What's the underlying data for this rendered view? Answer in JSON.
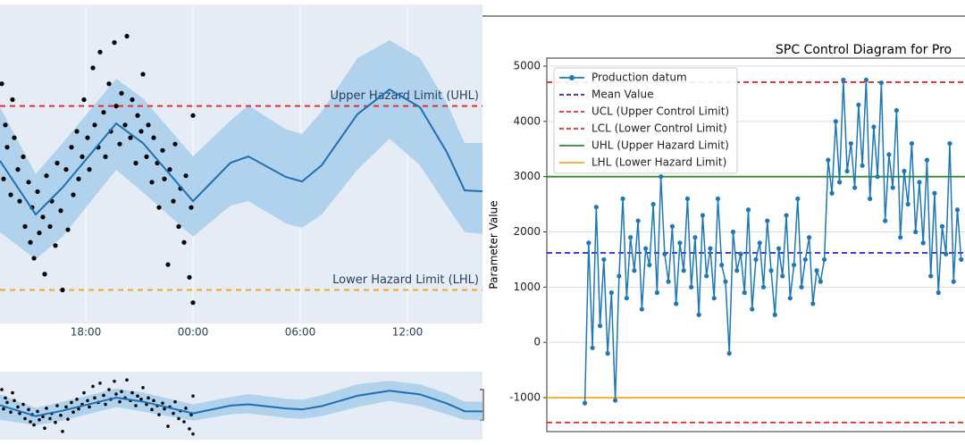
{
  "chart_data": [
    {
      "type": "forecast",
      "xlim": [
        13.2,
        40.2
      ],
      "ylim": [
        0,
        100
      ],
      "xticks": [
        {
          "value": 18,
          "label": "18:00"
        },
        {
          "value": 24,
          "label": "00:00"
        },
        {
          "value": 30,
          "label": "06:00"
        },
        {
          "value": 36,
          "label": "12:00"
        }
      ],
      "scatter": {
        "color": "#000000",
        "x": [
          13.3,
          13.4,
          13.5,
          13.6,
          13.8,
          13.9,
          14.0,
          14.2,
          14.3,
          14.5,
          14.6,
          14.8,
          14.9,
          15.0,
          15.1,
          15.3,
          15.4,
          15.6,
          15.7,
          15.8,
          16.0,
          16.1,
          16.3,
          16.4,
          16.6,
          16.7,
          16.9,
          17.0,
          17.2,
          17.3,
          17.5,
          17.6,
          17.8,
          17.9,
          18.1,
          18.2,
          18.4,
          18.5,
          18.7,
          18.8,
          19.0,
          19.1,
          19.3,
          19.4,
          19.6,
          19.7,
          19.9,
          20.0,
          20.2,
          20.3,
          20.5,
          20.6,
          20.8,
          20.9,
          21.1,
          21.2,
          21.4,
          21.5,
          21.7,
          21.8,
          22.0,
          22.1,
          22.3,
          22.4,
          22.6,
          22.7,
          22.9,
          23.0,
          23.2,
          23.3,
          23.5,
          23.6,
          23.8,
          23.9,
          24.0,
          24.0
        ],
        "y": [
          75,
          45,
          62,
          55,
          40,
          70,
          58,
          48,
          38,
          52,
          30,
          44,
          25,
          36,
          20,
          41,
          28,
          33,
          15,
          46,
          30,
          38,
          24,
          50,
          35,
          10,
          48,
          29,
          55,
          40,
          60,
          45,
          52,
          70,
          58,
          48,
          80,
          62,
          55,
          85,
          66,
          52,
          75,
          60,
          88,
          68,
          56,
          72,
          62,
          90,
          58,
          70,
          50,
          65,
          60,
          78,
          52,
          62,
          44,
          58,
          50,
          36,
          54,
          45,
          18,
          48,
          38,
          56,
          30,
          42,
          25,
          46,
          14,
          36,
          6,
          65
        ]
      },
      "forecast": {
        "color": "#1f6fb4",
        "band_color": "#9ec9e8",
        "x": [
          13.2,
          15.2,
          16.7,
          19.7,
          21.2,
          24.0,
          26.1,
          27.1,
          29.2,
          30.1,
          31.2,
          33.2,
          35.0,
          36.7,
          38.2,
          39.2,
          40.2
        ],
        "values": [
          50.7,
          33.8,
          42.3,
          62.5,
          56.3,
          38.0,
          50.1,
          52.1,
          45.6,
          44.2,
          49.3,
          65.4,
          73.2,
          67.6,
          53.5,
          41.4,
          41.1
        ],
        "upper": [
          67.6,
          46.5,
          56.3,
          76.6,
          70.4,
          52.1,
          63.4,
          68.2,
          60.6,
          59.2,
          66.2,
          83.1,
          88.7,
          83.1,
          69.0,
          56.3,
          56.3
        ],
        "lower": [
          28.2,
          19.7,
          26.8,
          47.9,
          40.8,
          26.8,
          36.6,
          38.0,
          31.0,
          29.6,
          33.8,
          47.9,
          57.7,
          49.3,
          36.6,
          28.2,
          27.6
        ]
      },
      "hlines": [
        {
          "name": "Upper Hazard Limit (UHL)",
          "value": 68,
          "color": "#e0302b"
        },
        {
          "name": "Lower Hazard Limit (LHL)",
          "value": 10,
          "color": "#f5a623"
        }
      ]
    },
    {
      "type": "line",
      "title": "SPC Control Diagram for Pro",
      "ylabel": "Parameter Value",
      "xlim": [
        -10,
        100
      ],
      "ylim": [
        -1615,
        5146
      ],
      "yticks": [
        -1000,
        0,
        1000,
        2000,
        3000,
        4000,
        5000
      ],
      "grid": true,
      "legend": "upper left",
      "series": [
        {
          "name": "Production datum",
          "color": "#1f77b4",
          "values": [
            -1100,
            1800,
            -100,
            2450,
            300,
            1500,
            -200,
            900,
            -1050,
            1200,
            2600,
            800,
            1900,
            1300,
            2200,
            600,
            1700,
            1400,
            2500,
            900,
            3000,
            1600,
            1100,
            2100,
            700,
            1800,
            1300,
            2600,
            1000,
            1900,
            500,
            2300,
            1200,
            1700,
            800,
            2600,
            1400,
            1100,
            -200,
            2000,
            1300,
            1600,
            900,
            2400,
            600,
            1500,
            1800,
            1000,
            2200,
            1300,
            500,
            1700,
            1200,
            2300,
            800,
            1400,
            2600,
            1000,
            1500,
            1900,
            700,
            1300,
            1100,
            1500,
            3300,
            2700,
            4000,
            2900,
            4750,
            3100,
            3600,
            2800,
            4300,
            3200,
            4750,
            2600,
            3900,
            3000,
            4700,
            2200,
            3400,
            2800,
            4200,
            1900,
            3100,
            2500,
            3600,
            2000,
            2900,
            1800,
            3300,
            1200,
            2700,
            900,
            2100,
            1600,
            3600,
            1100,
            2400,
            1500
          ]
        }
      ],
      "hlines": [
        {
          "name": "Mean Value",
          "value": 1620,
          "color": "#2323d6",
          "dash": true
        },
        {
          "name": "UCL (Upper Control Limit)",
          "value": 4710,
          "color": "#e0302b",
          "dash": true
        },
        {
          "name": "LCL (Lower Control Limit)",
          "value": -1450,
          "color": "#e0302b",
          "dash": true
        },
        {
          "name": "UHL (Upper Hazard Limit)",
          "value": 3000,
          "color": "#2e8b2e",
          "dash": false
        },
        {
          "name": "LHL (Lower Hazard Limit)",
          "value": -1000,
          "color": "#f5a623",
          "dash": false
        }
      ]
    }
  ]
}
